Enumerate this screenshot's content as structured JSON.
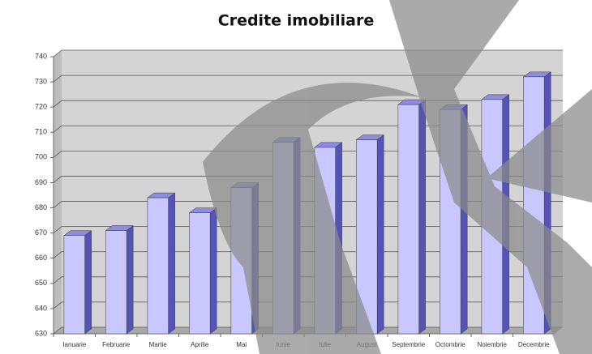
{
  "chart_data": {
    "type": "bar3d",
    "title": "Credite imobiliare",
    "categories": [
      "Ianuarie",
      "Februarie",
      "Martie",
      "Aprilie",
      "Mai",
      "Iunie",
      "Iulie",
      "August",
      "Septembrie",
      "Octombrie",
      "Noiembrie",
      "Decembrie"
    ],
    "values": [
      669,
      671,
      684,
      678,
      688,
      706,
      704,
      707,
      721,
      719,
      723,
      732
    ],
    "color": "#c8c8ff",
    "ylim": [
      630,
      740
    ],
    "yticks": [
      630,
      640,
      650,
      660,
      670,
      680,
      690,
      700,
      710,
      720,
      730,
      740
    ],
    "grid": true
  }
}
